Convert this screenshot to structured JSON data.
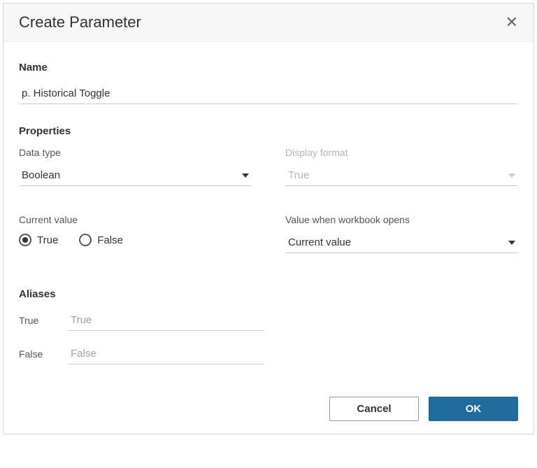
{
  "dialog": {
    "title": "Create Parameter"
  },
  "name": {
    "label": "Name",
    "value": "p. Historical Toggle"
  },
  "properties": {
    "label": "Properties",
    "dataType": {
      "label": "Data type",
      "value": "Boolean"
    },
    "displayFormat": {
      "label": "Display format",
      "value": "True",
      "disabled": true
    },
    "currentValue": {
      "label": "Current value",
      "options": {
        "true": "True",
        "false": "False"
      },
      "selected": "true"
    },
    "valueWhenOpens": {
      "label": "Value when workbook opens",
      "value": "Current value"
    }
  },
  "aliases": {
    "label": "Aliases",
    "true": {
      "key": "True",
      "value": "True"
    },
    "false": {
      "key": "False",
      "value": "False"
    }
  },
  "footer": {
    "cancel": "Cancel",
    "ok": "OK"
  },
  "colors": {
    "primaryButton": "#1f6b9e",
    "border": "#cccccc",
    "text": "#333333",
    "disabledText": "#b5b5b5",
    "headerBg": "#f6f6f6"
  }
}
